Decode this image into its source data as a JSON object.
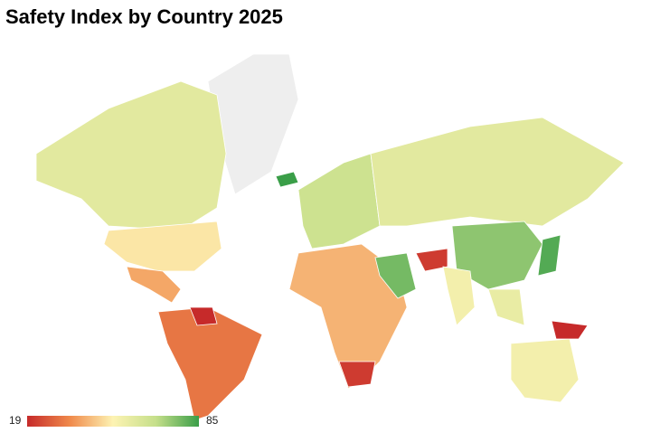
{
  "title": "Safety Index by Country 2025",
  "scale": {
    "min": 19,
    "max": 85,
    "colors": [
      "#c62a2a",
      "#f08a4b",
      "#fdf3b3",
      "#c5df8a",
      "#3a9e48"
    ]
  },
  "regions": [
    {
      "value": 60
    },
    {
      "value": 50
    },
    {
      "value": 40
    },
    {
      "value": 32
    },
    {
      "value": 19
    },
    {
      "value": 66
    },
    {
      "value": 60
    },
    {
      "value": 85
    },
    {
      "value": 42
    },
    {
      "value": 22
    },
    {
      "value": 78
    },
    {
      "value": 22
    },
    {
      "value": 75
    },
    {
      "value": 55
    },
    {
      "value": 82
    },
    {
      "value": 58
    },
    {
      "value": 55
    },
    {
      "value": 19
    }
  ]
}
